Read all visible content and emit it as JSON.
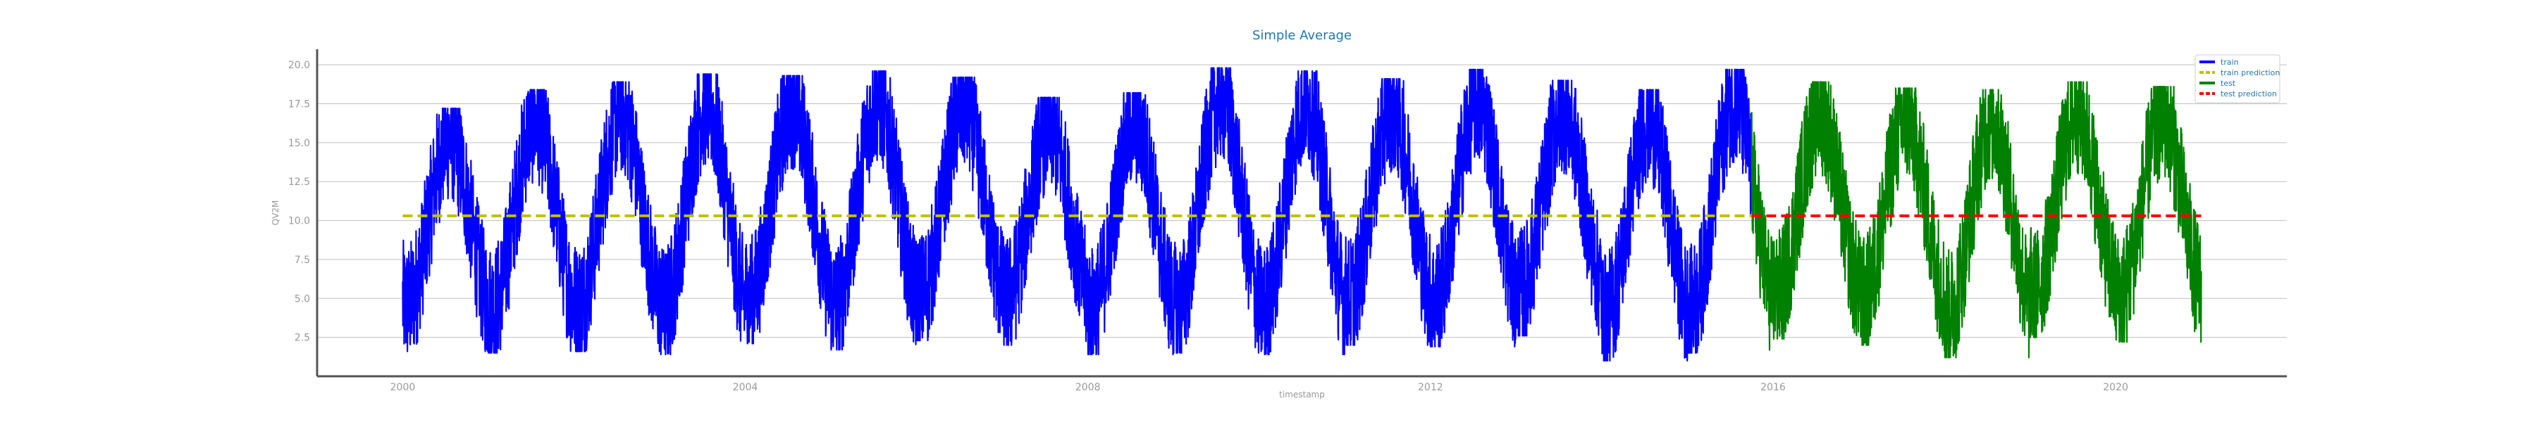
{
  "chart_data": {
    "type": "line",
    "title": "Simple Average",
    "xlabel": "timestamp",
    "ylabel": "QV2M",
    "x_range": [
      "1999-01-01",
      "2021-12-31"
    ],
    "ylim": [
      0,
      21
    ],
    "x_ticks": [
      "2000",
      "2004",
      "2008",
      "2012",
      "2016",
      "2020"
    ],
    "y_ticks": [
      "2.5",
      "5.0",
      "7.5",
      "10.0",
      "12.5",
      "15.0",
      "17.5",
      "20.0"
    ],
    "grid": "horizontal",
    "legend_position": "top-right",
    "seasonal_profile": {
      "description_of_series_shape": "daily values oscillating yearly between roughly 2 and 19",
      "yearly_peaks": [
        {
          "year": 2000,
          "peak": 17.2,
          "trough": 1.6
        },
        {
          "year": 2001,
          "peak": 18.4,
          "trough": 1.5
        },
        {
          "year": 2002,
          "peak": 18.9,
          "trough": 1.6
        },
        {
          "year": 2003,
          "peak": 19.4,
          "trough": 1.4
        },
        {
          "year": 2004,
          "peak": 19.3,
          "trough": 2.1
        },
        {
          "year": 2005,
          "peak": 19.6,
          "trough": 1.7
        },
        {
          "year": 2006,
          "peak": 19.2,
          "trough": 2.3
        },
        {
          "year": 2007,
          "peak": 17.9,
          "trough": 2.0
        },
        {
          "year": 2008,
          "peak": 18.2,
          "trough": 1.4
        },
        {
          "year": 2009,
          "peak": 19.8,
          "trough": 1.5
        },
        {
          "year": 2010,
          "peak": 19.6,
          "trough": 1.4
        },
        {
          "year": 2011,
          "peak": 19.1,
          "trough": 2.0
        },
        {
          "year": 2012,
          "peak": 19.7,
          "trough": 1.9
        },
        {
          "year": 2013,
          "peak": 19.0,
          "trough": 2.6
        },
        {
          "year": 2014,
          "peak": 18.4,
          "trough": 1.0
        },
        {
          "year": 2015,
          "peak": 19.7,
          "trough": 1.5
        },
        {
          "year": 2016,
          "peak": 18.9,
          "trough": 2.4
        },
        {
          "year": 2017,
          "peak": 18.5,
          "trough": 2.0
        },
        {
          "year": 2018,
          "peak": 18.4,
          "trough": 1.2
        },
        {
          "year": 2019,
          "peak": 18.9,
          "trough": 2.5
        },
        {
          "year": 2020,
          "peak": 18.6,
          "trough": 2.2
        }
      ]
    },
    "series": [
      {
        "name": "train",
        "color": "#0000ff",
        "style": "solid",
        "x_start": "2000-01-01",
        "x_end": "2015-09-30"
      },
      {
        "name": "train prediction",
        "color": "#bfbf00",
        "style": "dashed",
        "value": 10.3,
        "x_start": "2000-01-01",
        "x_end": "2015-09-30"
      },
      {
        "name": "test",
        "color": "#008000",
        "style": "solid",
        "x_start": "2015-10-01",
        "x_end": "2020-12-31"
      },
      {
        "name": "test prediction",
        "color": "#ff0000",
        "style": "dashed",
        "value": 10.3,
        "x_start": "2015-10-01",
        "x_end": "2020-12-31"
      }
    ]
  }
}
